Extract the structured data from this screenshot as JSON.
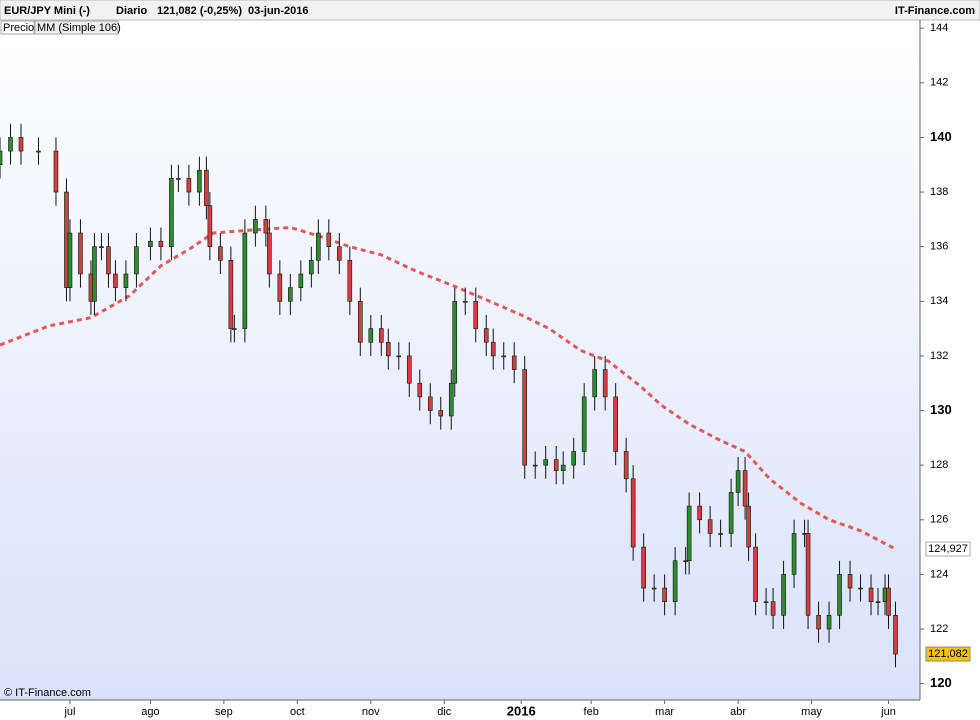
{
  "chart_data": {
    "type": "candlestick",
    "header": {
      "symbol": "EUR/JPY Mini (-)",
      "period": "Diario",
      "quote": "121,082 (-0,25%)",
      "date": "03-jun-2016",
      "brand": "IT-Finance.com"
    },
    "footer": "© IT-Finance.com",
    "xlim": [
      0,
      263
    ],
    "xticks": [
      {
        "value": 20,
        "label": "jul"
      },
      {
        "value": 43,
        "label": "ago"
      },
      {
        "value": 64,
        "label": "sep"
      },
      {
        "value": 85,
        "label": "oct"
      },
      {
        "value": 106,
        "label": "nov"
      },
      {
        "value": 127,
        "label": "dic"
      },
      {
        "value": 149,
        "label": "2016"
      },
      {
        "value": 169,
        "label": "feb"
      },
      {
        "value": 190,
        "label": "mar"
      },
      {
        "value": 211,
        "label": "abr"
      },
      {
        "value": 232,
        "label": "may"
      },
      {
        "value": 254,
        "label": "jun"
      }
    ],
    "ylim": [
      119.4,
      144.3
    ],
    "yticks": [
      120,
      122,
      124,
      126,
      128,
      130,
      132,
      134,
      136,
      138,
      140,
      142,
      144
    ],
    "series": [
      {
        "name": "Precio",
        "up_color": "#2e8b2e",
        "down_color": "#d04040",
        "x": [
          0,
          3,
          6,
          11,
          16,
          19,
          20,
          23,
          26,
          27,
          29,
          31,
          33,
          36,
          39,
          43,
          46,
          49,
          51,
          54,
          57,
          59,
          60,
          63,
          66,
          67,
          70,
          73,
          76,
          77,
          80,
          83,
          86,
          89,
          91,
          94,
          97,
          100,
          103,
          106,
          109,
          111,
          114,
          117,
          120,
          123,
          126,
          129,
          130,
          133,
          136,
          139,
          141,
          144,
          147,
          150,
          153,
          156,
          159,
          161,
          164,
          167,
          170,
          173,
          176,
          179,
          181,
          184,
          187,
          190,
          193,
          196,
          197,
          200,
          203,
          206,
          209,
          211,
          213,
          214,
          216,
          219,
          221,
          224,
          227,
          230,
          231,
          234,
          237,
          240,
          243,
          246,
          249,
          251,
          253,
          254,
          256
        ],
        "open": [
          139,
          139.5,
          140,
          139.5,
          139.5,
          138,
          134.5,
          136.5,
          135,
          134,
          136,
          136,
          135,
          134.5,
          135,
          136,
          136.2,
          136,
          138.5,
          138.5,
          138,
          138.8,
          137.5,
          136,
          135.5,
          133,
          133,
          136.5,
          137,
          136.5,
          135,
          134,
          134.5,
          135,
          135.5,
          136.5,
          136,
          135.5,
          134,
          132.5,
          133,
          132.5,
          132,
          132,
          131,
          130.5,
          130,
          129.8,
          131,
          134,
          134,
          133,
          132.5,
          132,
          132,
          131.5,
          128,
          128,
          128.2,
          127.8,
          128,
          128.5,
          130.5,
          131.5,
          130.5,
          128.5,
          127.5,
          125,
          123.5,
          123.5,
          123,
          124.5,
          124.5,
          126.5,
          126,
          125.5,
          125.5,
          127,
          127.8,
          126.5,
          125,
          123,
          123,
          122.5,
          124,
          125.5,
          125.5,
          122.5,
          122,
          122.5,
          124,
          123.5,
          123.5,
          123,
          123,
          123.5,
          122.5
        ],
        "high": [
          140,
          140.5,
          140.5,
          140,
          140,
          138.5,
          137,
          137,
          135.5,
          136.5,
          136.5,
          136.5,
          135.5,
          135.5,
          136.5,
          136.7,
          136.7,
          139,
          139,
          139,
          139.3,
          139.3,
          138,
          136.5,
          136,
          133.5,
          137,
          137.5,
          137.5,
          137,
          135.5,
          135,
          135.5,
          136,
          137,
          137,
          136.5,
          136,
          134.5,
          133.5,
          133.5,
          133,
          132.5,
          132.5,
          131.5,
          131,
          130.5,
          131.5,
          134.5,
          134.5,
          134.5,
          133.5,
          133,
          132.5,
          132.5,
          132,
          128.5,
          128.7,
          128.7,
          128.5,
          129,
          131,
          132,
          132,
          131,
          129,
          128,
          125.5,
          124,
          124,
          125,
          125,
          127,
          127,
          126.5,
          126,
          127.5,
          128.3,
          128.3,
          127,
          125.5,
          123.5,
          123.5,
          124.5,
          126,
          126,
          126,
          123,
          123,
          124.5,
          124.5,
          124,
          124,
          123.5,
          124,
          124,
          123
        ],
        "low": [
          138.5,
          139,
          139,
          139,
          137.5,
          134,
          134,
          134.5,
          133.5,
          133.5,
          135.5,
          134.5,
          134,
          134,
          134.5,
          135.5,
          135.5,
          135.5,
          138,
          137.5,
          137.5,
          137,
          135.5,
          135,
          132.5,
          132.5,
          132.5,
          136,
          136,
          134.5,
          133.5,
          133.5,
          134,
          134.5,
          135,
          135.5,
          135,
          133.5,
          132,
          132,
          132,
          131.5,
          131.5,
          130.5,
          130,
          129.5,
          129.3,
          129.3,
          130.5,
          133.5,
          132.5,
          132,
          131.5,
          131.5,
          131,
          127.5,
          127.5,
          127.5,
          127.3,
          127.3,
          127.5,
          128,
          130,
          130,
          128,
          127,
          124.5,
          123,
          123,
          122.5,
          122.5,
          124,
          124,
          125.5,
          125,
          125,
          125,
          126.5,
          126,
          124.5,
          122.5,
          122.5,
          122,
          122,
          123.5,
          125,
          122,
          121.5,
          121.5,
          122,
          123,
          123,
          122.5,
          122.5,
          122.5,
          122,
          120.6
        ],
        "close": [
          139.5,
          140,
          139.5,
          139.5,
          138,
          134.5,
          136.5,
          135,
          134,
          136,
          136,
          135,
          134.5,
          135,
          136,
          136.2,
          136,
          138.5,
          138.5,
          138,
          138.8,
          137.5,
          136,
          135.5,
          133,
          133,
          136.5,
          137,
          136.5,
          135,
          134,
          134.5,
          135,
          135.5,
          136.5,
          136,
          135.5,
          134,
          132.5,
          133,
          132.5,
          132,
          132,
          131,
          130.5,
          130,
          129.8,
          131,
          134,
          134,
          133,
          132.5,
          132,
          132,
          131.5,
          128,
          128,
          128.2,
          127.8,
          128,
          128.5,
          130.5,
          131.5,
          130.5,
          128.5,
          127.5,
          125,
          123.5,
          123.5,
          123,
          124.5,
          124.5,
          126.5,
          126,
          125.5,
          125.5,
          127,
          127.8,
          126.5,
          125,
          123,
          123,
          122.5,
          124,
          125.5,
          125.5,
          122.5,
          122,
          122.5,
          124,
          123.5,
          123.5,
          123,
          123,
          123.5,
          122.5,
          121.082
        ],
        "last_label": "121,082",
        "label_color": "#f2c500"
      },
      {
        "name": "MM (Simple 106)",
        "type": "line",
        "color": "#e05a5a",
        "dashed": true,
        "x": [
          0,
          14,
          26,
          37,
          46,
          54,
          61,
          71,
          83,
          91,
          100,
          109,
          119,
          129,
          140,
          149,
          157,
          166,
          174,
          183,
          189,
          197,
          206,
          213,
          220,
          229,
          237,
          246,
          256
        ],
        "values": [
          132.4,
          133.1,
          133.4,
          134.2,
          135.3,
          135.9,
          136.5,
          136.6,
          136.7,
          136.4,
          136,
          135.7,
          135.1,
          134.6,
          134,
          133.5,
          133,
          132.2,
          131.8,
          130.9,
          130.2,
          129.5,
          128.9,
          128.5,
          127.5,
          126.6,
          126,
          125.6,
          124.927
        ],
        "last_label": "124,927"
      }
    ]
  }
}
